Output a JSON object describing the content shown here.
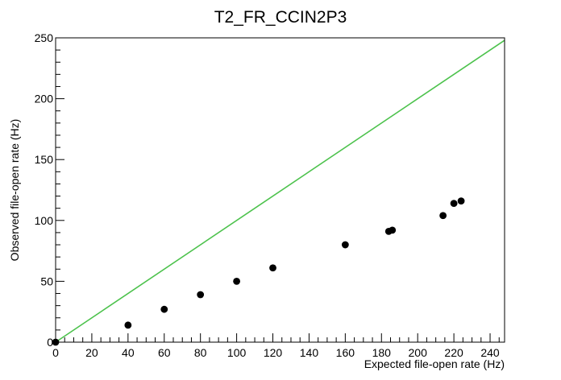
{
  "chart_data": {
    "type": "scatter",
    "title": "T2_FR_CCIN2P3",
    "xlabel": "Expected file-open rate (Hz)",
    "ylabel": "Observed file-open rate (Hz)",
    "xlim": [
      0,
      248
    ],
    "ylim": [
      0,
      250
    ],
    "x_ticks": [
      0,
      20,
      40,
      60,
      80,
      100,
      120,
      140,
      160,
      180,
      200,
      220,
      240
    ],
    "y_ticks": [
      0,
      50,
      100,
      150,
      200,
      250
    ],
    "grid": false,
    "legend": "none",
    "series": [
      {
        "points": [
          {
            "x": 0,
            "y": 0
          },
          {
            "x": 40,
            "y": 14
          },
          {
            "x": 60,
            "y": 27
          },
          {
            "x": 80,
            "y": 39
          },
          {
            "x": 100,
            "y": 50
          },
          {
            "x": 120,
            "y": 61
          },
          {
            "x": 160,
            "y": 80
          },
          {
            "x": 184,
            "y": 91
          },
          {
            "x": 186,
            "y": 92
          },
          {
            "x": 214,
            "y": 104
          },
          {
            "x": 220,
            "y": 114
          },
          {
            "x": 224,
            "y": 116
          }
        ],
        "color": "#000000"
      }
    ],
    "reference_line": {
      "from": [
        0,
        0
      ],
      "to": [
        248,
        248
      ],
      "color": "#4cc24c"
    }
  }
}
